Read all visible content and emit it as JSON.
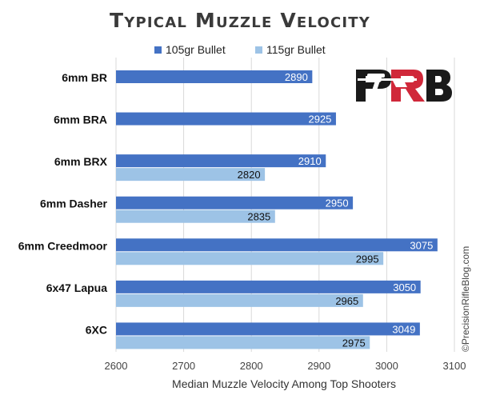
{
  "chart_data": {
    "type": "bar",
    "orientation": "horizontal",
    "title": "Typical Muzzle Velocity",
    "xlabel": "Median Muzzle Velocity Among Top Shooters",
    "ylabel": "",
    "xlim": [
      2600,
      3100
    ],
    "xticks": [
      2600,
      2700,
      2800,
      2900,
      3000,
      3100
    ],
    "grid": true,
    "legend_position": "top",
    "categories": [
      "6mm BR",
      "6mm BRA",
      "6mm BRX",
      "6mm Dasher",
      "6mm Creedmoor",
      "6x47 Lapua",
      "6XC"
    ],
    "series": [
      {
        "name": "105gr Bullet",
        "color": "#4472C4",
        "label_color": "#ffffff",
        "values": [
          2890,
          2925,
          2910,
          2950,
          3075,
          3050,
          3049
        ]
      },
      {
        "name": "115gr Bullet",
        "color": "#9DC3E6",
        "label_color": "#111111",
        "values": [
          null,
          null,
          2820,
          2835,
          2995,
          2965,
          2975
        ]
      }
    ]
  },
  "logo": {
    "text": "PRB",
    "colors": [
      "#1a1a1a",
      "#d0283a",
      "#1a1a1a"
    ]
  },
  "watermark": "©PrecisionRifleBlog.com"
}
